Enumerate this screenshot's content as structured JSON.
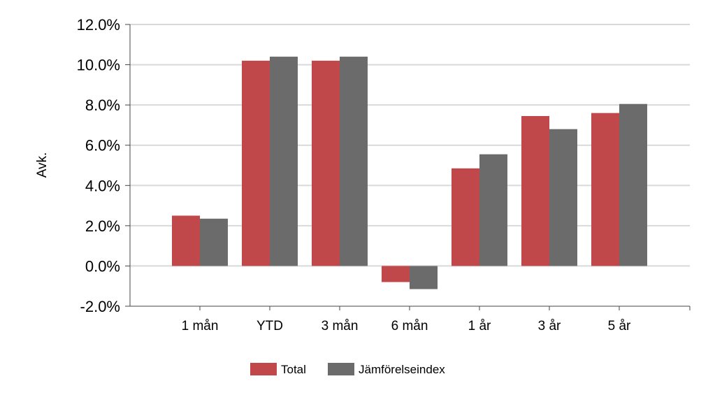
{
  "chart_data": {
    "type": "bar",
    "ylabel": "Avk.",
    "categories": [
      "1 mån",
      "YTD",
      "3 mån",
      "6 mån",
      "1 år",
      "3 år",
      "5 år"
    ],
    "series": [
      {
        "name": "Total",
        "color": "#c0474a",
        "values": [
          2.5,
          10.2,
          10.2,
          -0.8,
          4.85,
          7.45,
          7.6
        ]
      },
      {
        "name": "Jämförelseindex",
        "color": "#6b6b6b",
        "values": [
          2.35,
          10.4,
          10.4,
          -1.15,
          5.55,
          6.8,
          8.05
        ]
      }
    ],
    "ylim": [
      -2.0,
      12.0
    ],
    "yticks": [
      -2.0,
      0.0,
      2.0,
      4.0,
      6.0,
      8.0,
      10.0,
      12.0
    ],
    "ytick_labels": [
      "-2.0%",
      "0.0%",
      "2.0%",
      "4.0%",
      "6.0%",
      "8.0%",
      "10.0%",
      "12.0%"
    ],
    "grid": true,
    "legend_position": "bottom"
  }
}
